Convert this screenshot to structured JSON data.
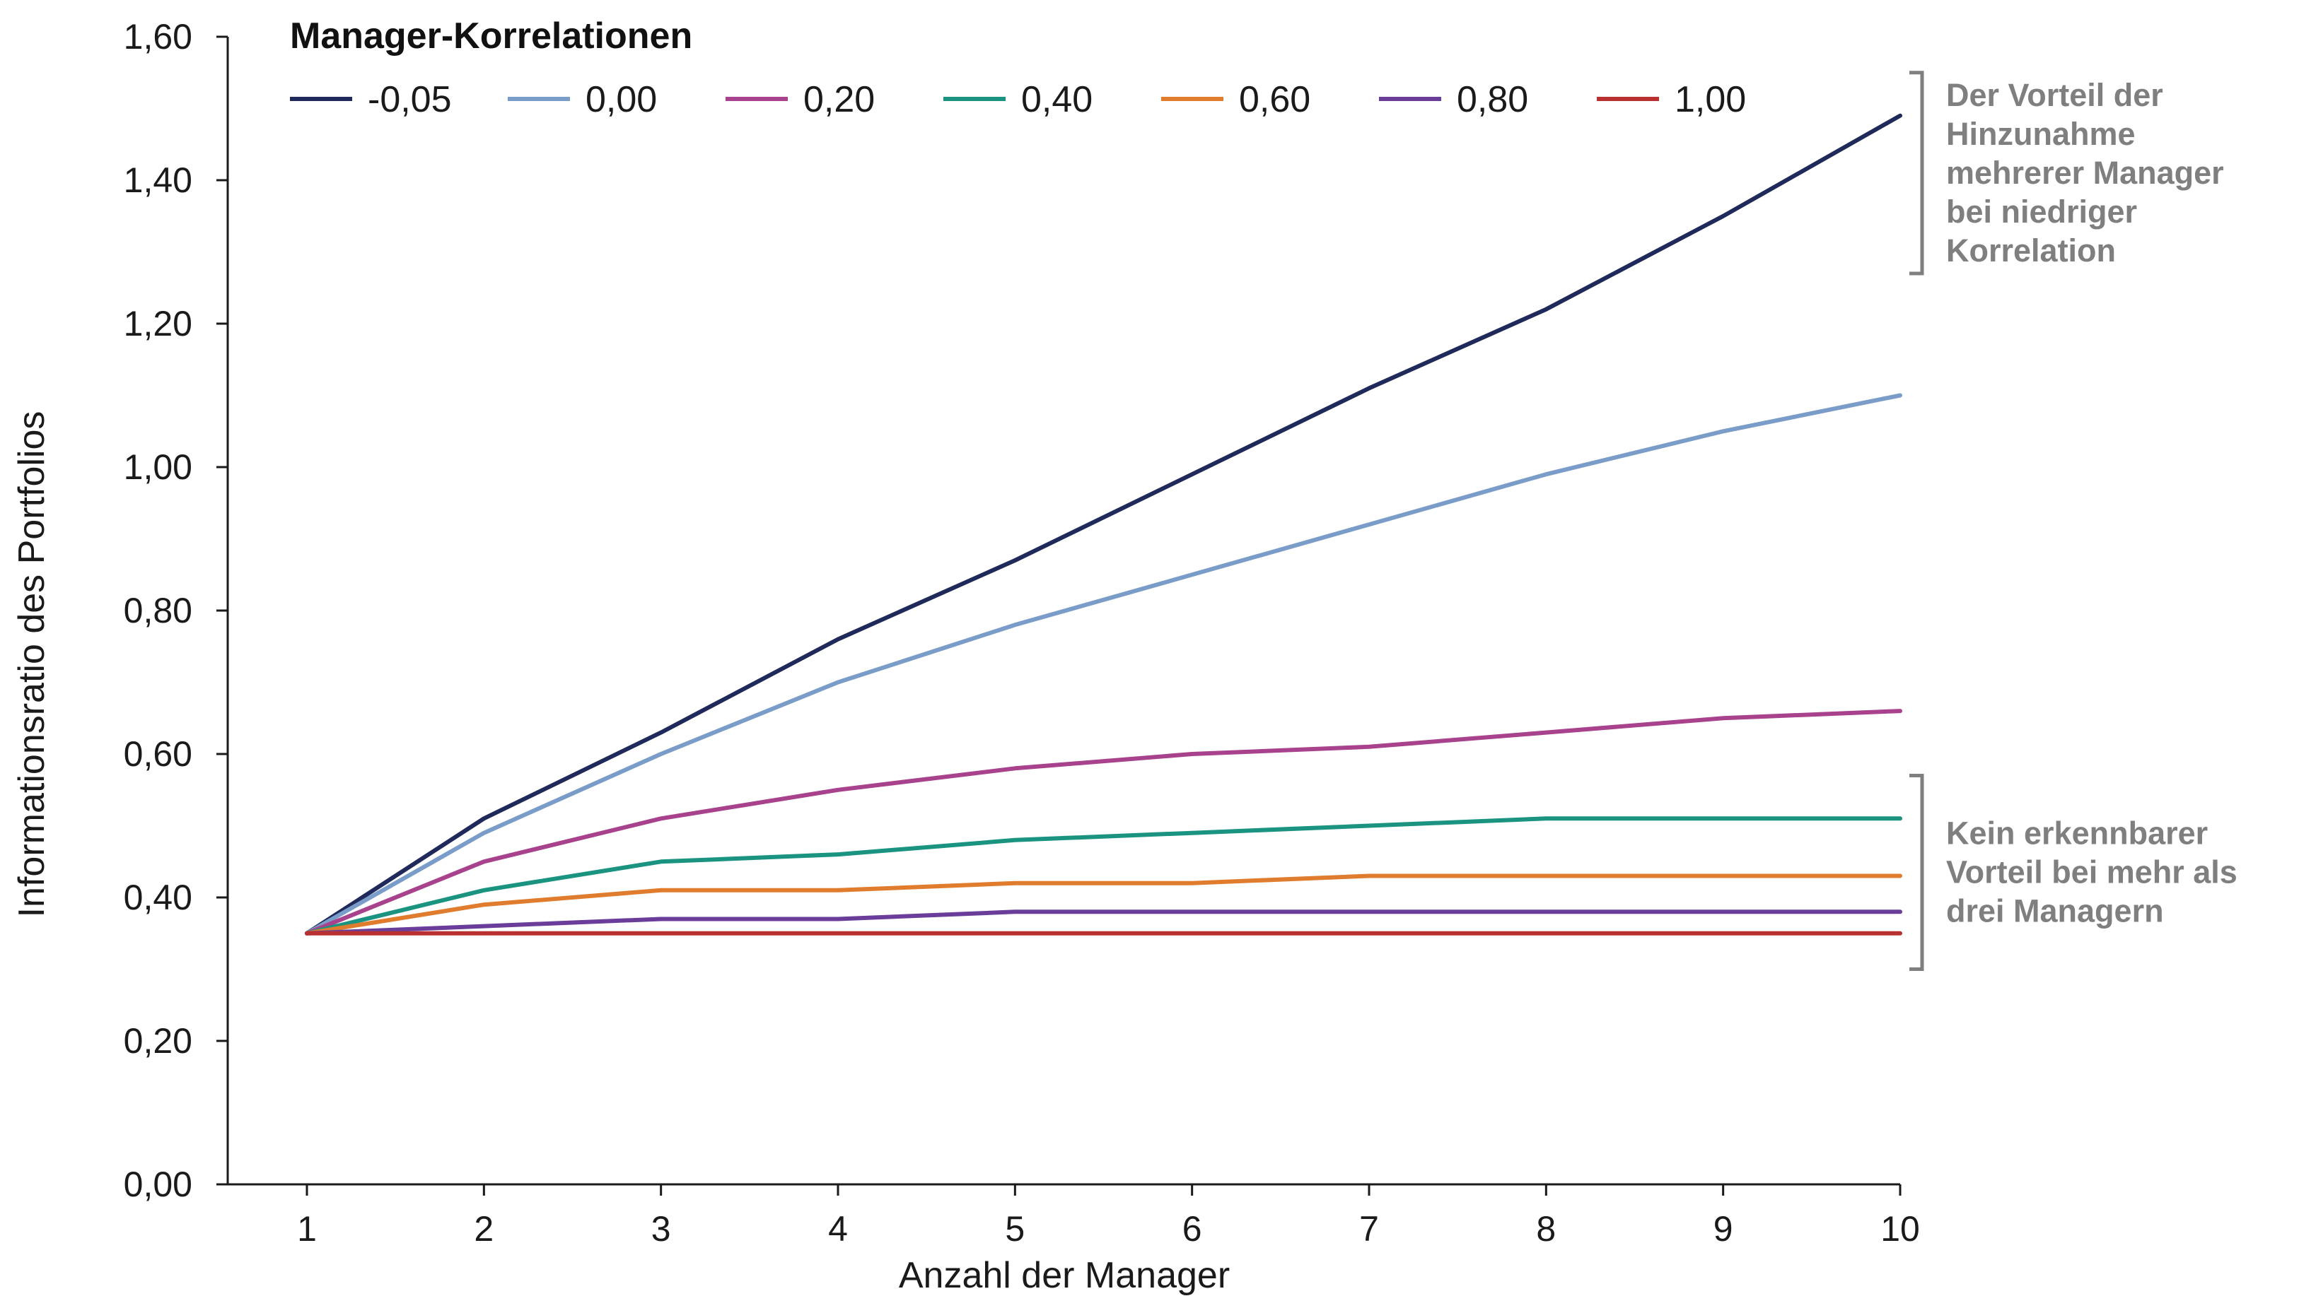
{
  "chart_data": {
    "type": "line",
    "legend_title": "Manager-Korrelationen",
    "legend_position": "top-left",
    "xlabel": "Anzahl der Manager",
    "ylabel": "Informationsratio des Portfolios",
    "x": [
      1,
      2,
      3,
      4,
      5,
      6,
      7,
      8,
      9,
      10
    ],
    "x_ticks": [
      "1",
      "2",
      "3",
      "4",
      "5",
      "6",
      "7",
      "8",
      "9",
      "10"
    ],
    "ylim": [
      0,
      1.6
    ],
    "y_ticks": [
      "0,00",
      "0,20",
      "0,40",
      "0,60",
      "0,80",
      "1,00",
      "1,20",
      "1,40",
      "1,60"
    ],
    "grid": false,
    "series": [
      {
        "name": "-0,05",
        "color": "#1f2a5a",
        "values": [
          0.35,
          0.51,
          0.63,
          0.76,
          0.87,
          0.99,
          1.11,
          1.22,
          1.35,
          1.49
        ]
      },
      {
        "name": "0,00",
        "color": "#7a9cc8",
        "values": [
          0.35,
          0.49,
          0.6,
          0.7,
          0.78,
          0.85,
          0.92,
          0.99,
          1.05,
          1.1
        ]
      },
      {
        "name": "0,20",
        "color": "#a8428c",
        "values": [
          0.35,
          0.45,
          0.51,
          0.55,
          0.58,
          0.6,
          0.61,
          0.63,
          0.65,
          0.66
        ]
      },
      {
        "name": "0,40",
        "color": "#1a9481",
        "values": [
          0.35,
          0.41,
          0.45,
          0.46,
          0.48,
          0.49,
          0.5,
          0.51,
          0.51,
          0.51
        ]
      },
      {
        "name": "0,60",
        "color": "#e07c2e",
        "values": [
          0.35,
          0.39,
          0.41,
          0.41,
          0.42,
          0.42,
          0.43,
          0.43,
          0.43,
          0.43
        ]
      },
      {
        "name": "0,80",
        "color": "#6a3d9a",
        "values": [
          0.35,
          0.36,
          0.37,
          0.37,
          0.38,
          0.38,
          0.38,
          0.38,
          0.38,
          0.38
        ]
      },
      {
        "name": "1,00",
        "color": "#b8302f",
        "values": [
          0.35,
          0.35,
          0.35,
          0.35,
          0.35,
          0.35,
          0.35,
          0.35,
          0.35,
          0.35
        ]
      }
    ],
    "annotations": [
      {
        "lines": [
          "Der Vorteil der",
          "Hinzunahme",
          "mehrerer Manager",
          "bei niedriger",
          "Korrelation"
        ],
        "y_range": [
          1.27,
          1.55
        ]
      },
      {
        "lines": [
          "Kein erkennbarer",
          "Vorteil bei mehr als",
          "drei Managern"
        ],
        "y_range": [
          0.3,
          0.57
        ]
      }
    ],
    "colors": {
      "axis": "#1a1a1a",
      "annotation": "#7f7f7f"
    }
  }
}
